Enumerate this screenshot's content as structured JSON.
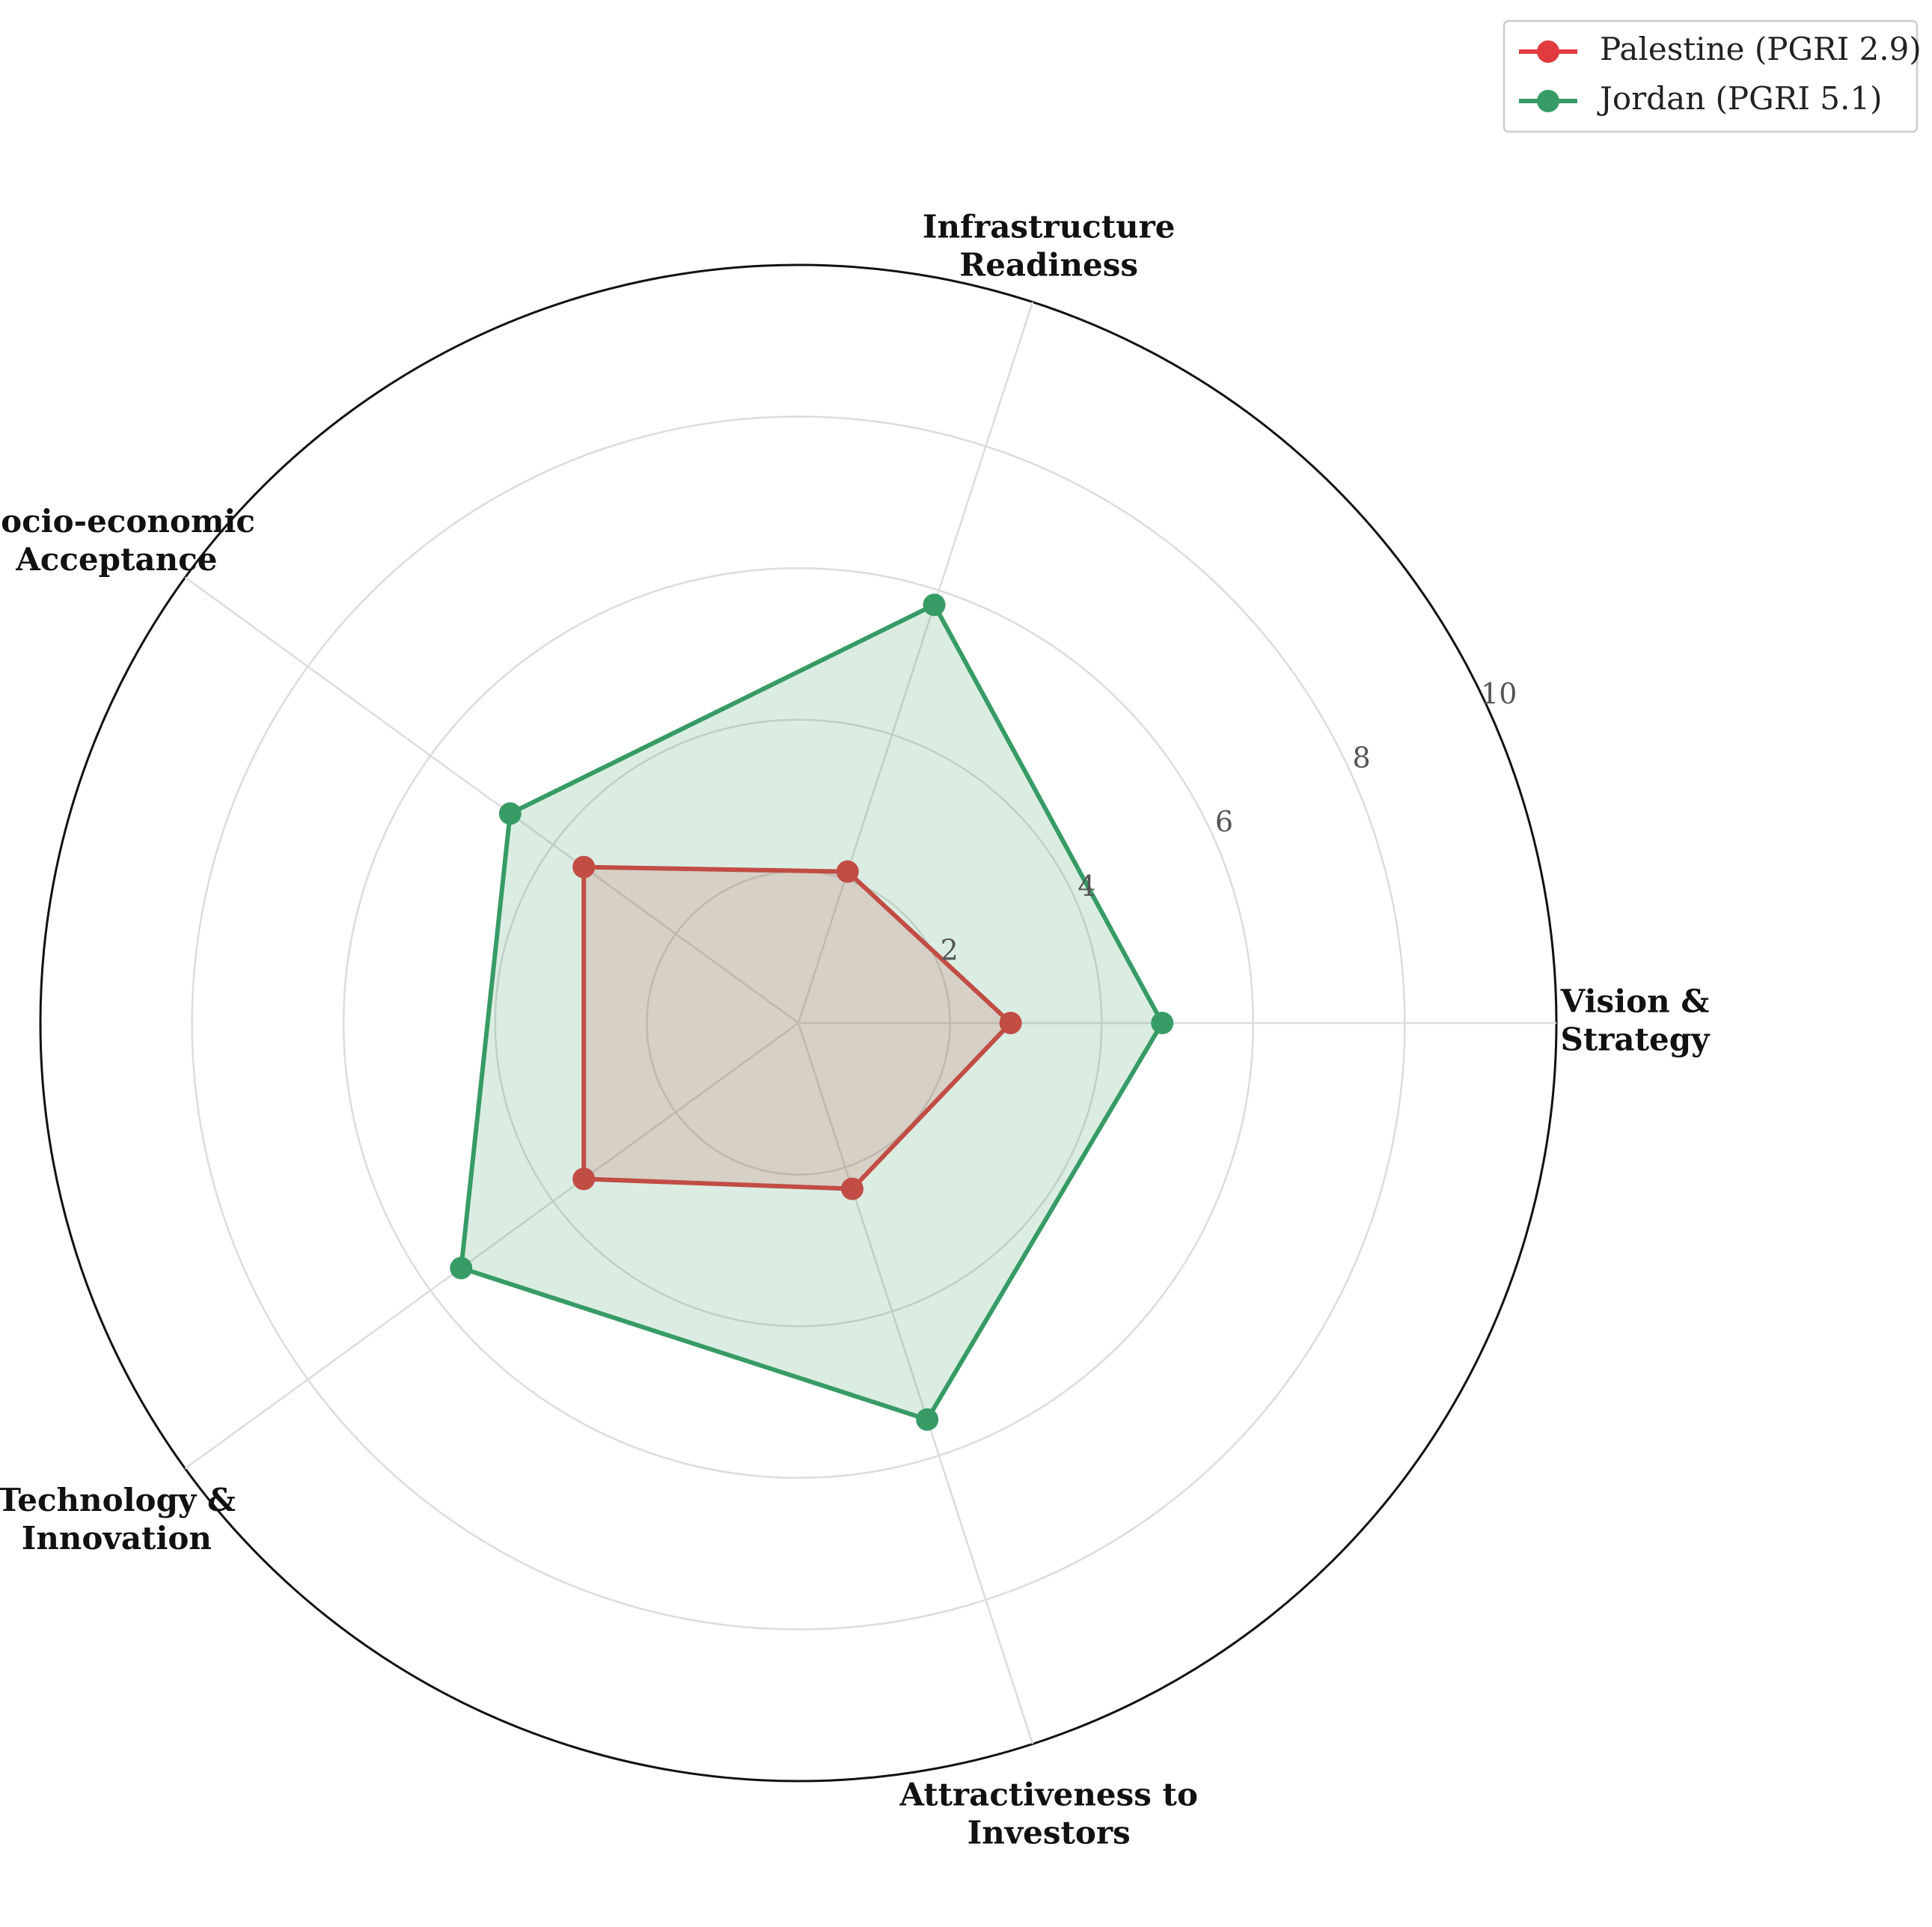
{
  "chart_data": {
    "type": "radar",
    "categories": [
      "Vision &\nStrategy",
      "Infrastructure\nReadiness",
      "Socio-economic\nAcceptance",
      "Technology &\nInnovation",
      "Attractiveness to\nInvestors"
    ],
    "series": [
      {
        "name": "Palestine (PGRI 2.9)",
        "color": "#e03c3f",
        "values": [
          2.8,
          2.1,
          3.5,
          3.5,
          2.3
        ]
      },
      {
        "name": "Jordan (PGRI 5.1)",
        "color": "#379b66",
        "values": [
          4.8,
          5.8,
          4.7,
          5.5,
          5.5
        ]
      }
    ],
    "ylim": [
      0,
      10
    ],
    "yticks": [
      2,
      4,
      6,
      8,
      10
    ],
    "grid": true,
    "legend": "upper right"
  }
}
